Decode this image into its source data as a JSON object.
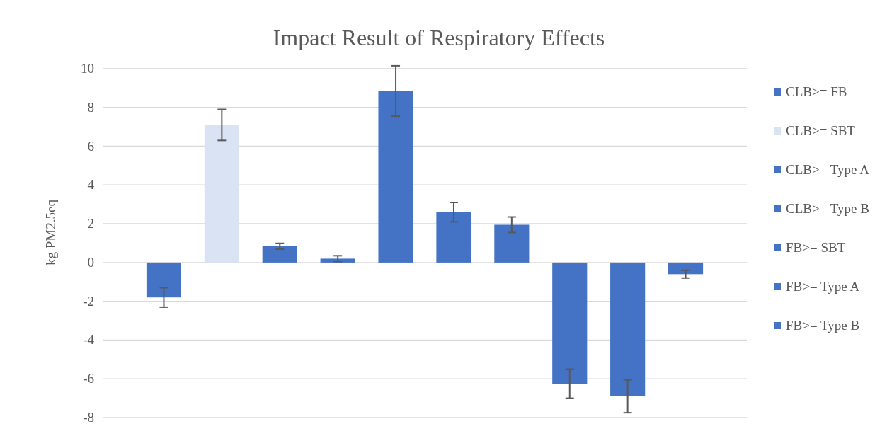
{
  "chart_data": {
    "type": "bar",
    "title": "Impact Result of Respiratory Effects",
    "ylabel": "kg PM2.5eq",
    "categories": [
      null
    ],
    "series": [
      {
        "name": "CLB>= FB",
        "color": "#4472c4",
        "values": [
          -1.8
        ],
        "errors": [
          0.5
        ]
      },
      {
        "name": "CLB>= SBT",
        "color": "#dae3f3",
        "values": [
          7.1
        ],
        "errors": [
          0.8
        ]
      },
      {
        "name": "CLB>= Type A",
        "color": "#4472c4",
        "values": [
          0.84
        ],
        "errors": [
          0.15
        ]
      },
      {
        "name": "CLB>= Type B",
        "color": "#4472c4",
        "values": [
          0.2
        ],
        "errors": [
          0.15
        ]
      },
      {
        "name": "FB>= SBT",
        "color": "#4472c4",
        "values": [
          8.85
        ],
        "errors": [
          1.3
        ]
      },
      {
        "name": "FB>= Type A",
        "color": "#4472c4",
        "values": [
          2.6
        ],
        "errors": [
          0.5
        ]
      },
      {
        "name": "FB>= Type B",
        "color": "#4472c4",
        "values": [
          1.95
        ],
        "errors": [
          0.4
        ]
      },
      {
        "color": "#4472c4",
        "values": [
          -6.25
        ],
        "errors": [
          0.75
        ]
      },
      {
        "color": "#4472c4",
        "values": [
          -6.9
        ],
        "errors": [
          0.85
        ]
      },
      {
        "color": "#4472c4",
        "values": [
          -0.6
        ],
        "errors": [
          0.2
        ]
      }
    ],
    "ylim": [
      -8,
      10
    ],
    "yticks": [
      -8,
      -6,
      -4,
      -2,
      0,
      2,
      4,
      6,
      8,
      10
    ],
    "grid": "y",
    "legend": "right"
  }
}
